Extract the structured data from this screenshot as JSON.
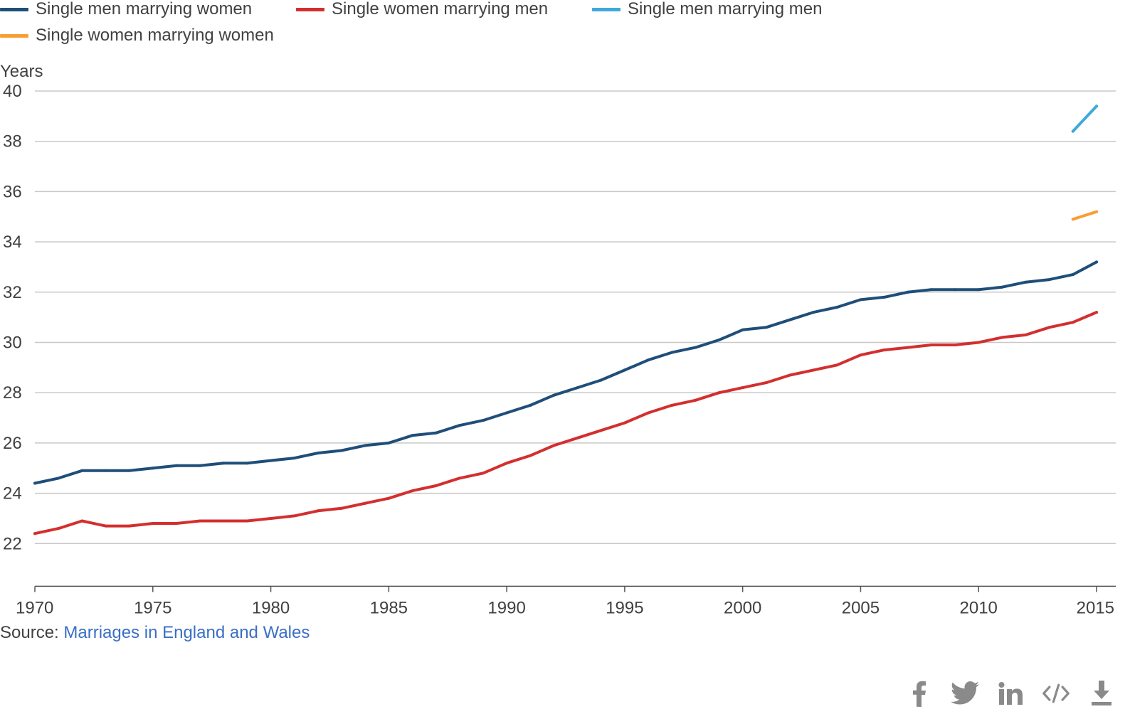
{
  "legend": {
    "items": [
      {
        "label": "Single men marrying women",
        "color": "#1f4e79"
      },
      {
        "label": "Single women marrying men",
        "color": "#d32f2f"
      },
      {
        "label": "Single men marrying men",
        "color": "#3fa9dc"
      },
      {
        "label": "Single women marrying women",
        "color": "#f99d33"
      }
    ]
  },
  "source": {
    "prefix": "Source: ",
    "link_text": "Marriages in England and Wales"
  },
  "share": {
    "icons": [
      "facebook-icon",
      "twitter-icon",
      "linkedin-icon",
      "embed-code-icon",
      "download-icon"
    ]
  },
  "chart_data": {
    "type": "line",
    "title": "",
    "xlabel": "",
    "ylabel": "Years",
    "xlim": [
      1970,
      2015
    ],
    "ylim": [
      20.3,
      40
    ],
    "y_ticks": [
      "22",
      "24",
      "26",
      "28",
      "30",
      "32",
      "34",
      "36",
      "38",
      "40"
    ],
    "x_ticks": [
      "1970",
      "1975",
      "1980",
      "1985",
      "1990",
      "1995",
      "2000",
      "2005",
      "2010",
      "2015"
    ],
    "grid": true,
    "legend_position": "top-left",
    "series": [
      {
        "name": "Single men marrying women",
        "color": "#1f4e79",
        "x": [
          1970,
          1971,
          1972,
          1973,
          1974,
          1975,
          1976,
          1977,
          1978,
          1979,
          1980,
          1981,
          1982,
          1983,
          1984,
          1985,
          1986,
          1987,
          1988,
          1989,
          1990,
          1991,
          1992,
          1993,
          1994,
          1995,
          1996,
          1997,
          1998,
          1999,
          2000,
          2001,
          2002,
          2003,
          2004,
          2005,
          2006,
          2007,
          2008,
          2009,
          2010,
          2011,
          2012,
          2013,
          2014,
          2015
        ],
        "y": [
          24.4,
          24.6,
          24.9,
          24.9,
          24.9,
          25.0,
          25.1,
          25.1,
          25.2,
          25.2,
          25.3,
          25.4,
          25.6,
          25.7,
          25.9,
          26.0,
          26.3,
          26.4,
          26.7,
          26.9,
          27.2,
          27.5,
          27.9,
          28.2,
          28.5,
          28.9,
          29.3,
          29.6,
          29.8,
          30.1,
          30.5,
          30.6,
          30.9,
          31.2,
          31.4,
          31.7,
          31.8,
          32.0,
          32.1,
          32.1,
          32.1,
          32.2,
          32.4,
          32.5,
          32.7,
          33.2
        ]
      },
      {
        "name": "Single women marrying men",
        "color": "#d32f2f",
        "x": [
          1970,
          1971,
          1972,
          1973,
          1974,
          1975,
          1976,
          1977,
          1978,
          1979,
          1980,
          1981,
          1982,
          1983,
          1984,
          1985,
          1986,
          1987,
          1988,
          1989,
          1990,
          1991,
          1992,
          1993,
          1994,
          1995,
          1996,
          1997,
          1998,
          1999,
          2000,
          2001,
          2002,
          2003,
          2004,
          2005,
          2006,
          2007,
          2008,
          2009,
          2010,
          2011,
          2012,
          2013,
          2014,
          2015
        ],
        "y": [
          22.4,
          22.6,
          22.9,
          22.7,
          22.7,
          22.8,
          22.8,
          22.9,
          22.9,
          22.9,
          23.0,
          23.1,
          23.3,
          23.4,
          23.6,
          23.8,
          24.1,
          24.3,
          24.6,
          24.8,
          25.2,
          25.5,
          25.9,
          26.2,
          26.5,
          26.8,
          27.2,
          27.5,
          27.7,
          28.0,
          28.2,
          28.4,
          28.7,
          28.9,
          29.1,
          29.5,
          29.7,
          29.8,
          29.9,
          29.9,
          30.0,
          30.2,
          30.3,
          30.6,
          30.8,
          31.2
        ]
      },
      {
        "name": "Single men marrying men",
        "color": "#3fa9dc",
        "x": [
          2014,
          2015
        ],
        "y": [
          38.4,
          39.4
        ]
      },
      {
        "name": "Single women marrying women",
        "color": "#f99d33",
        "x": [
          2014,
          2015
        ],
        "y": [
          34.9,
          35.2
        ]
      }
    ]
  }
}
